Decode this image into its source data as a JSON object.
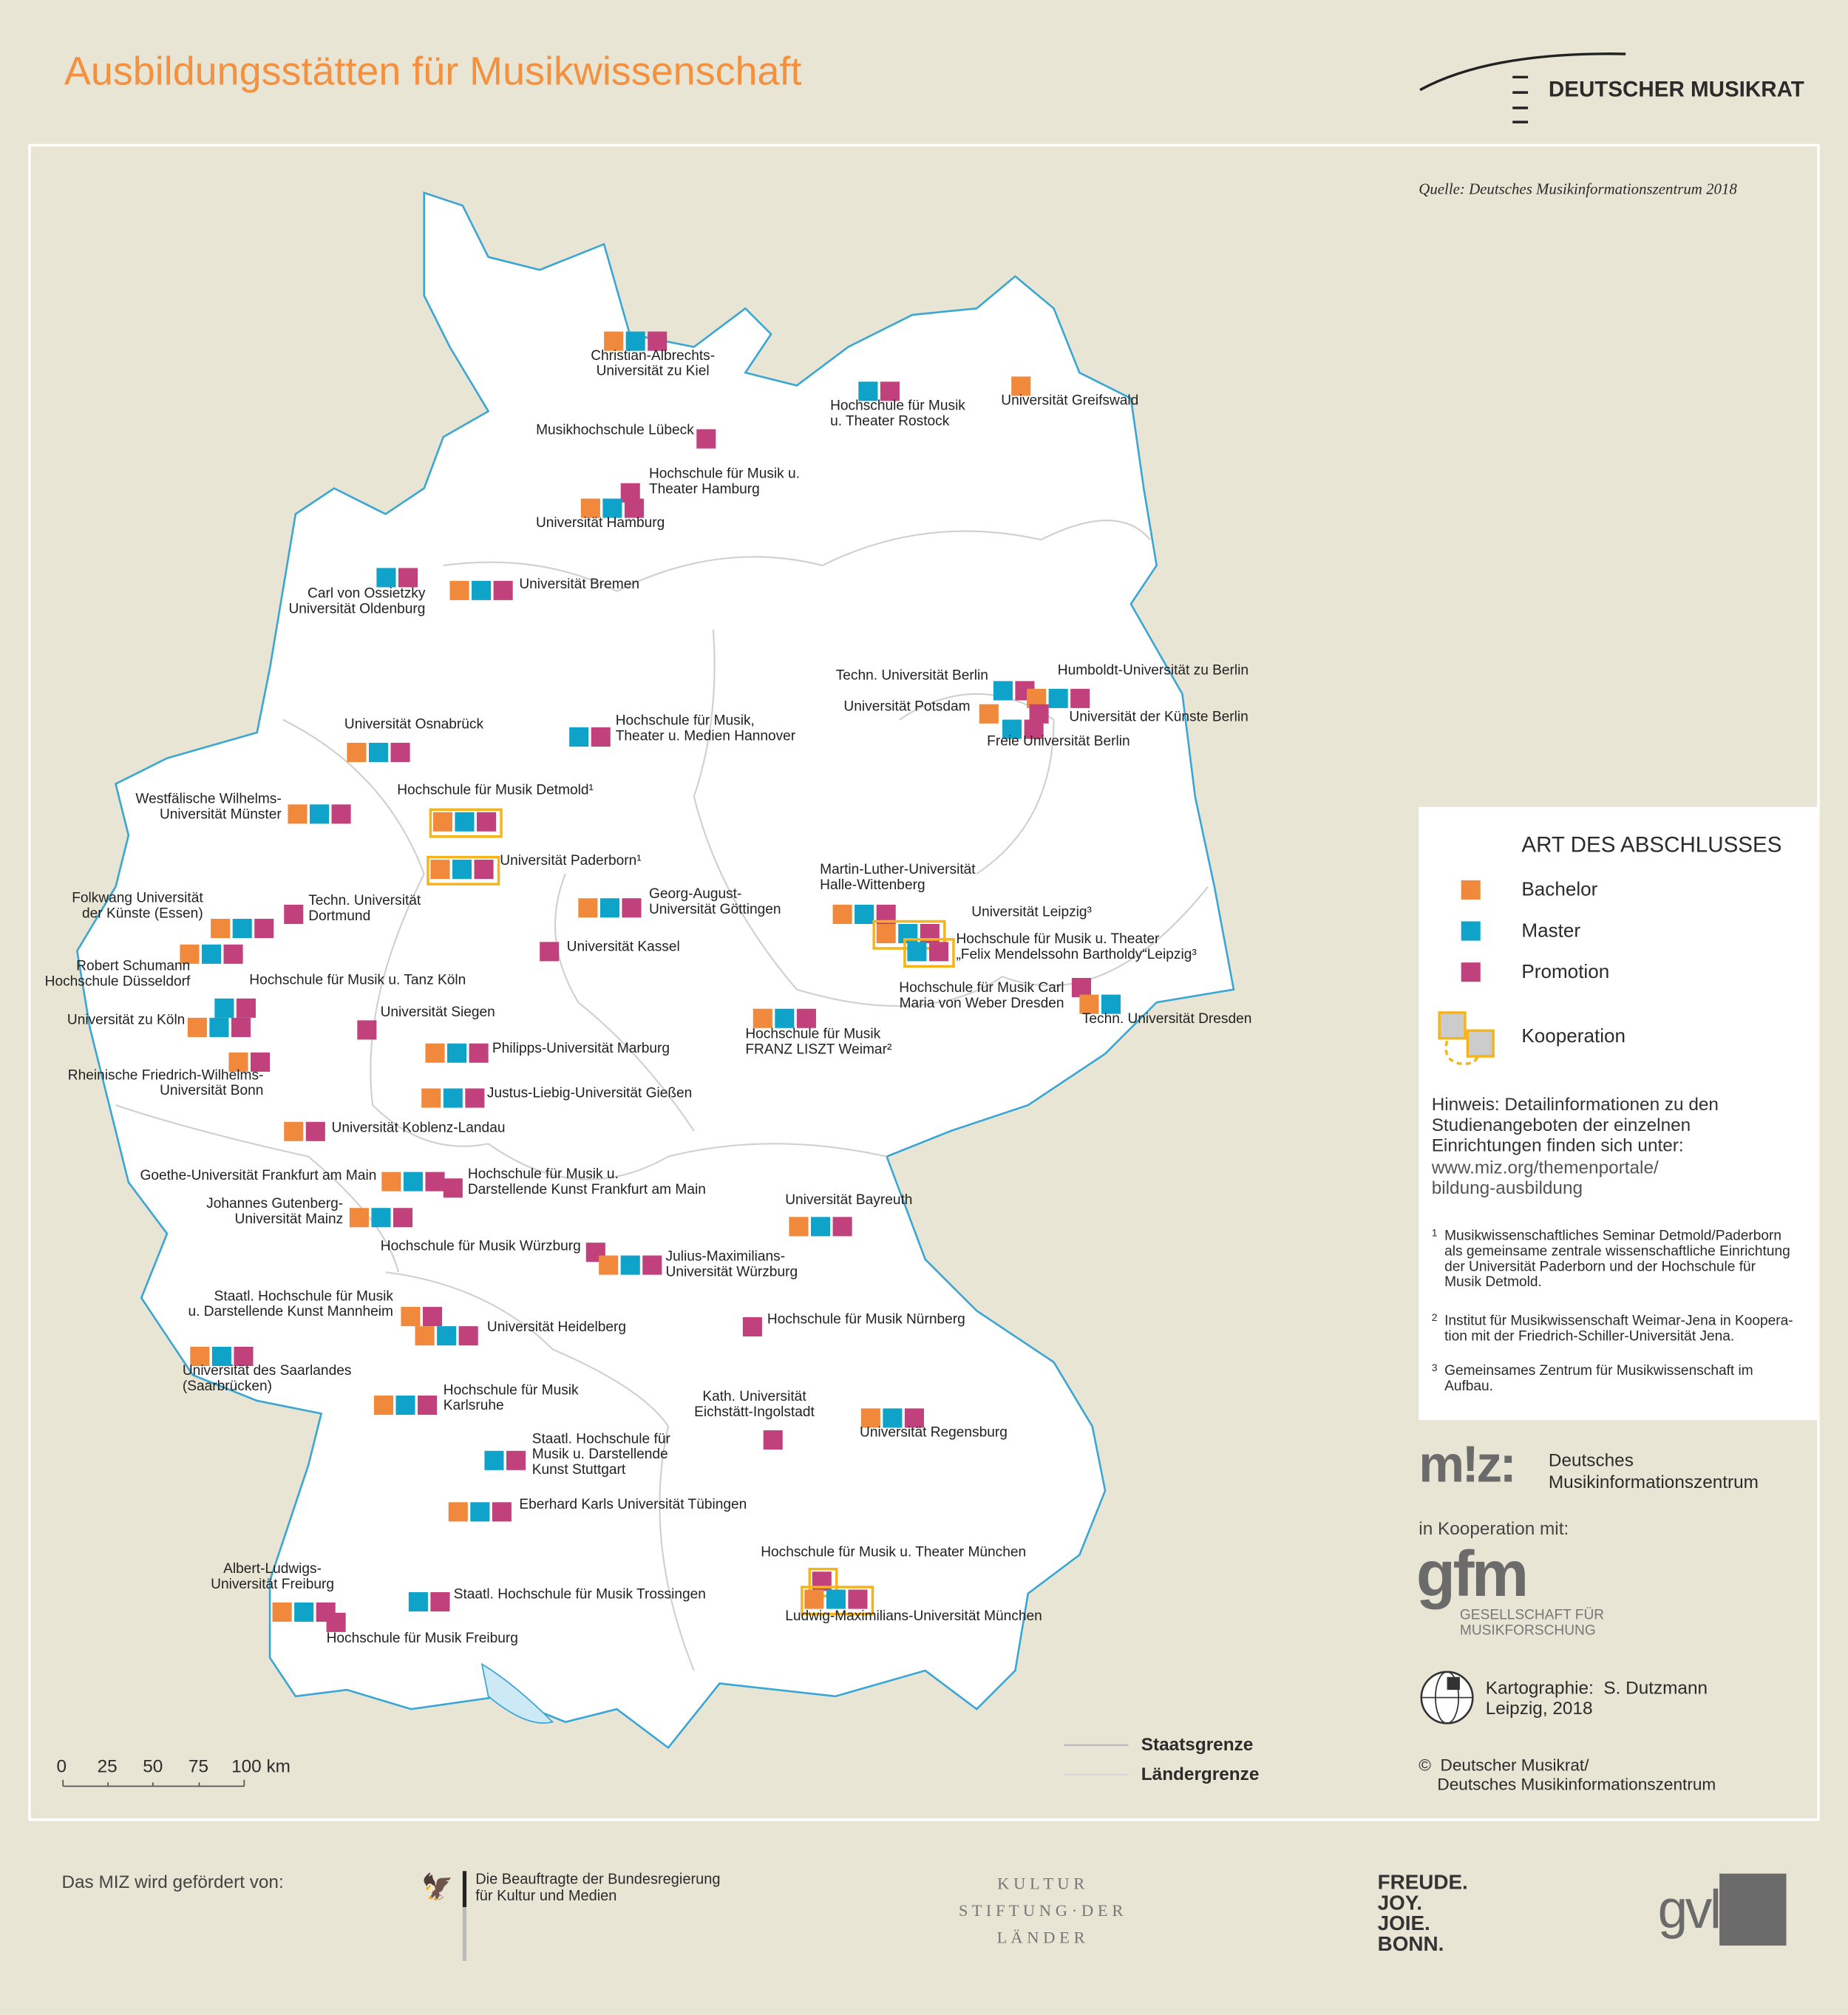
{
  "header": {
    "title": "Ausbildungsstätten für Musikwissenschaft",
    "publisher_logo": "DEUTSCHER MUSIKRAT"
  },
  "source": "Quelle:  Deutsches Musikinformationszentrum 2018",
  "colors": {
    "bachelor": "#f0893b",
    "master": "#0fa3c9",
    "promotion": "#c1417c",
    "kooperation": "#f4b41a",
    "title": "#f39140",
    "water": "#3aa6d4"
  },
  "legend": {
    "title": "ART DES ABSCHLUSSES",
    "items": [
      {
        "key": "B",
        "label": "Bachelor"
      },
      {
        "key": "M",
        "label": "Master"
      },
      {
        "key": "P",
        "label": "Promotion"
      },
      {
        "key": "K",
        "label": "Kooperation"
      }
    ],
    "hint": "Hinweis: Detailinformationen zu den Studienangeboten der einzelnen Einrichtungen finden sich unter:",
    "hint_url": "www.miz.org/themenportale/\nbildung-ausbildung",
    "footnotes": [
      {
        "n": "1",
        "text": "Musikwissenschaftliches Seminar Detmold/Paderborn\nals gemeinsame zentrale wissenschaftliche Einrichtung\nder Universität Paderborn und der Hochschule für\nMusik Detmold."
      },
      {
        "n": "2",
        "text": "Institut für Musikwissenschaft Weimar-Jena in Koopera-\ntion mit der Friedrich-Schiller-Universität Jena."
      },
      {
        "n": "3",
        "text": "Gemeinsames Zentrum für Musikwissenschaft im\nAufbau."
      }
    ]
  },
  "credits": {
    "miz_logo": "m!z:",
    "miz_name": "Deutsches\nMusikinformationszentrum",
    "in_cooperation": "in Kooperation mit:",
    "gfm_logo": "gfm",
    "gfm_name": "GESELLSCHAFT FÜR\nMUSIKFORSCHUNG",
    "cartography": "Kartographie:  S. Dutzmann\nLeipzig, 2018",
    "copyright": "©  Deutscher Musikrat/\n    Deutsches Musikinformationszentrum"
  },
  "scale": {
    "ticks": [
      "0",
      "25",
      "50",
      "75",
      "100 km"
    ]
  },
  "boundaries": {
    "state": "Staatsgrenze",
    "land": "Ländergrenze"
  },
  "footer": {
    "funded_by": "Das MIZ wird gefördert von:",
    "bkm": "Die Beauftragte der Bundesregierung\nfür Kultur und Medien",
    "kulturstiftung": "K U L T U R\nS T I F T U N G · D E R\nL Ä N D E R",
    "bonn": "FREUDE.\nJOY.\nJOIE.\nBONN.",
    "gvl": "gvl"
  },
  "institutions": [
    {
      "name": "Christian-Albrechts-\nUniversität zu Kiel",
      "degrees": [
        "B",
        "M",
        "P"
      ]
    },
    {
      "name": "Hochschule für Musik\nu. Theater Rostock",
      "degrees": [
        "M",
        "P"
      ]
    },
    {
      "name": "Universität Greifswald",
      "degrees": [
        "B"
      ]
    },
    {
      "name": "Musikhochschule Lübeck",
      "degrees": [
        "P"
      ]
    },
    {
      "name": "Hochschule für Musik u.\nTheater Hamburg",
      "degrees": [
        "P"
      ]
    },
    {
      "name": "Universität Hamburg",
      "degrees": [
        "B",
        "M",
        "P"
      ]
    },
    {
      "name": "Carl von Ossietzky\nUniversität Oldenburg",
      "degrees": [
        "M",
        "P"
      ]
    },
    {
      "name": "Universität Bremen",
      "degrees": [
        "B",
        "M",
        "P"
      ]
    },
    {
      "name": "Techn. Universität Berlin",
      "degrees": [
        "M",
        "P"
      ]
    },
    {
      "name": "Humboldt-Universität zu Berlin",
      "degrees": [
        "B",
        "M",
        "P"
      ]
    },
    {
      "name": "Universität Potsdam",
      "degrees": [
        "B"
      ]
    },
    {
      "name": "Universität der Künste Berlin",
      "degrees": [
        "P"
      ]
    },
    {
      "name": "Freie Universität Berlin",
      "degrees": [
        "M",
        "P"
      ]
    },
    {
      "name": "Universität Osnabrück",
      "degrees": [
        "B",
        "M",
        "P"
      ]
    },
    {
      "name": "Hochschule für Musik,\nTheater u. Medien Hannover",
      "degrees": [
        "M",
        "P"
      ]
    },
    {
      "name": "Westfälische Wilhelms-\nUniversität Münster",
      "degrees": [
        "B",
        "M",
        "P"
      ]
    },
    {
      "name": "Hochschule für Musik Detmold¹",
      "degrees": [
        "B",
        "M",
        "P"
      ],
      "kooperation": true
    },
    {
      "name": "Universität Paderborn¹",
      "degrees": [
        "B",
        "M",
        "P"
      ],
      "kooperation": true
    },
    {
      "name": "Folkwang Universität\nder Künste (Essen)",
      "degrees": [
        "B",
        "M",
        "P"
      ]
    },
    {
      "name": "Techn. Universität\nDortmund",
      "degrees": [
        "P"
      ]
    },
    {
      "name": "Robert Schumann\nHochschule Düsseldorf",
      "degrees": [
        "B",
        "M",
        "P"
      ]
    },
    {
      "name": "Hochschule für Musik u. Tanz Köln",
      "degrees": [
        "M",
        "P"
      ]
    },
    {
      "name": "Universität zu Köln",
      "degrees": [
        "B",
        "M",
        "P"
      ]
    },
    {
      "name": "Rheinische Friedrich-Wilhelms-\nUniversität Bonn",
      "degrees": [
        "B",
        "P"
      ]
    },
    {
      "name": "Georg-August-\nUniversität Göttingen",
      "degrees": [
        "B",
        "M",
        "P"
      ]
    },
    {
      "name": "Universität Kassel",
      "degrees": [
        "P"
      ]
    },
    {
      "name": "Universität Siegen",
      "degrees": [
        "P"
      ]
    },
    {
      "name": "Philipps-Universität Marburg",
      "degrees": [
        "B",
        "M",
        "P"
      ]
    },
    {
      "name": "Justus-Liebig-Universität Gießen",
      "degrees": [
        "B",
        "M",
        "P"
      ]
    },
    {
      "name": "Universität Koblenz-Landau",
      "degrees": [
        "B",
        "P"
      ]
    },
    {
      "name": "Goethe-Universität Frankfurt am Main",
      "degrees": [
        "B",
        "M",
        "P"
      ]
    },
    {
      "name": "Hochschule für Musik u.\nDarstellende Kunst Frankfurt am Main",
      "degrees": [
        "P"
      ]
    },
    {
      "name": "Johannes Gutenberg-\nUniversität Mainz",
      "degrees": [
        "B",
        "M",
        "P"
      ]
    },
    {
      "name": "Martin-Luther-Universität\nHalle-Wittenberg",
      "degrees": [
        "B",
        "M",
        "P"
      ]
    },
    {
      "name": "Universität Leipzig³",
      "degrees": [
        "B",
        "M",
        "P"
      ],
      "kooperation": true
    },
    {
      "name": "Hochschule für Musik u. Theater\n„Felix Mendelssohn Bartholdy“Leipzig³",
      "degrees": [
        "M",
        "P"
      ],
      "kooperation": true
    },
    {
      "name": "Hochschule für Musik Carl\nMaria von Weber Dresden",
      "degrees": [
        "P"
      ]
    },
    {
      "name": "Techn. Universität Dresden",
      "degrees": [
        "B",
        "M"
      ]
    },
    {
      "name": "Hochschule für Musik\nFRANZ LISZT Weimar²",
      "degrees": [
        "B",
        "M",
        "P"
      ]
    },
    {
      "name": "Universität Bayreuth",
      "degrees": [
        "B",
        "M",
        "P"
      ]
    },
    {
      "name": "Hochschule für Musik Würzburg",
      "degrees": [
        "P"
      ]
    },
    {
      "name": "Julius-Maximilians-\nUniversität Würzburg",
      "degrees": [
        "B",
        "M",
        "P"
      ]
    },
    {
      "name": "Staatl. Hochschule für Musik\nu. Darstellende Kunst Mannheim",
      "degrees": [
        "B",
        "P"
      ]
    },
    {
      "name": "Universität Heidelberg",
      "degrees": [
        "B",
        "M",
        "P"
      ]
    },
    {
      "name": "Universität des Saarlandes\n(Saarbrücken)",
      "degrees": [
        "B",
        "M",
        "P"
      ]
    },
    {
      "name": "Hochschule für Musik Nürnberg",
      "degrees": [
        "P"
      ]
    },
    {
      "name": "Hochschule für Musik\nKarlsruhe",
      "degrees": [
        "B",
        "M",
        "P"
      ]
    },
    {
      "name": "Kath. Universität\nEichstätt-Ingolstadt",
      "degrees": [
        "P"
      ]
    },
    {
      "name": "Universität Regensburg",
      "degrees": [
        "B",
        "M",
        "P"
      ]
    },
    {
      "name": "Staatl. Hochschule für\nMusik u. Darstellende\nKunst Stuttgart",
      "degrees": [
        "M",
        "P"
      ]
    },
    {
      "name": "Eberhard Karls Universität Tübingen",
      "degrees": [
        "B",
        "M",
        "P"
      ]
    },
    {
      "name": "Hochschule für Musik u. Theater München",
      "degrees": [
        "P"
      ],
      "kooperation": true
    },
    {
      "name": "Ludwig-Maximilians-Universität München",
      "degrees": [
        "B",
        "M",
        "P"
      ],
      "kooperation": true
    },
    {
      "name": "Albert-Ludwigs-\nUniversität Freiburg",
      "degrees": [
        "B",
        "M",
        "P"
      ]
    },
    {
      "name": "Hochschule für Musik Freiburg",
      "degrees": [
        "P"
      ]
    },
    {
      "name": "Staatl. Hochschule für Musik Trossingen",
      "degrees": [
        "M",
        "P"
      ]
    }
  ]
}
